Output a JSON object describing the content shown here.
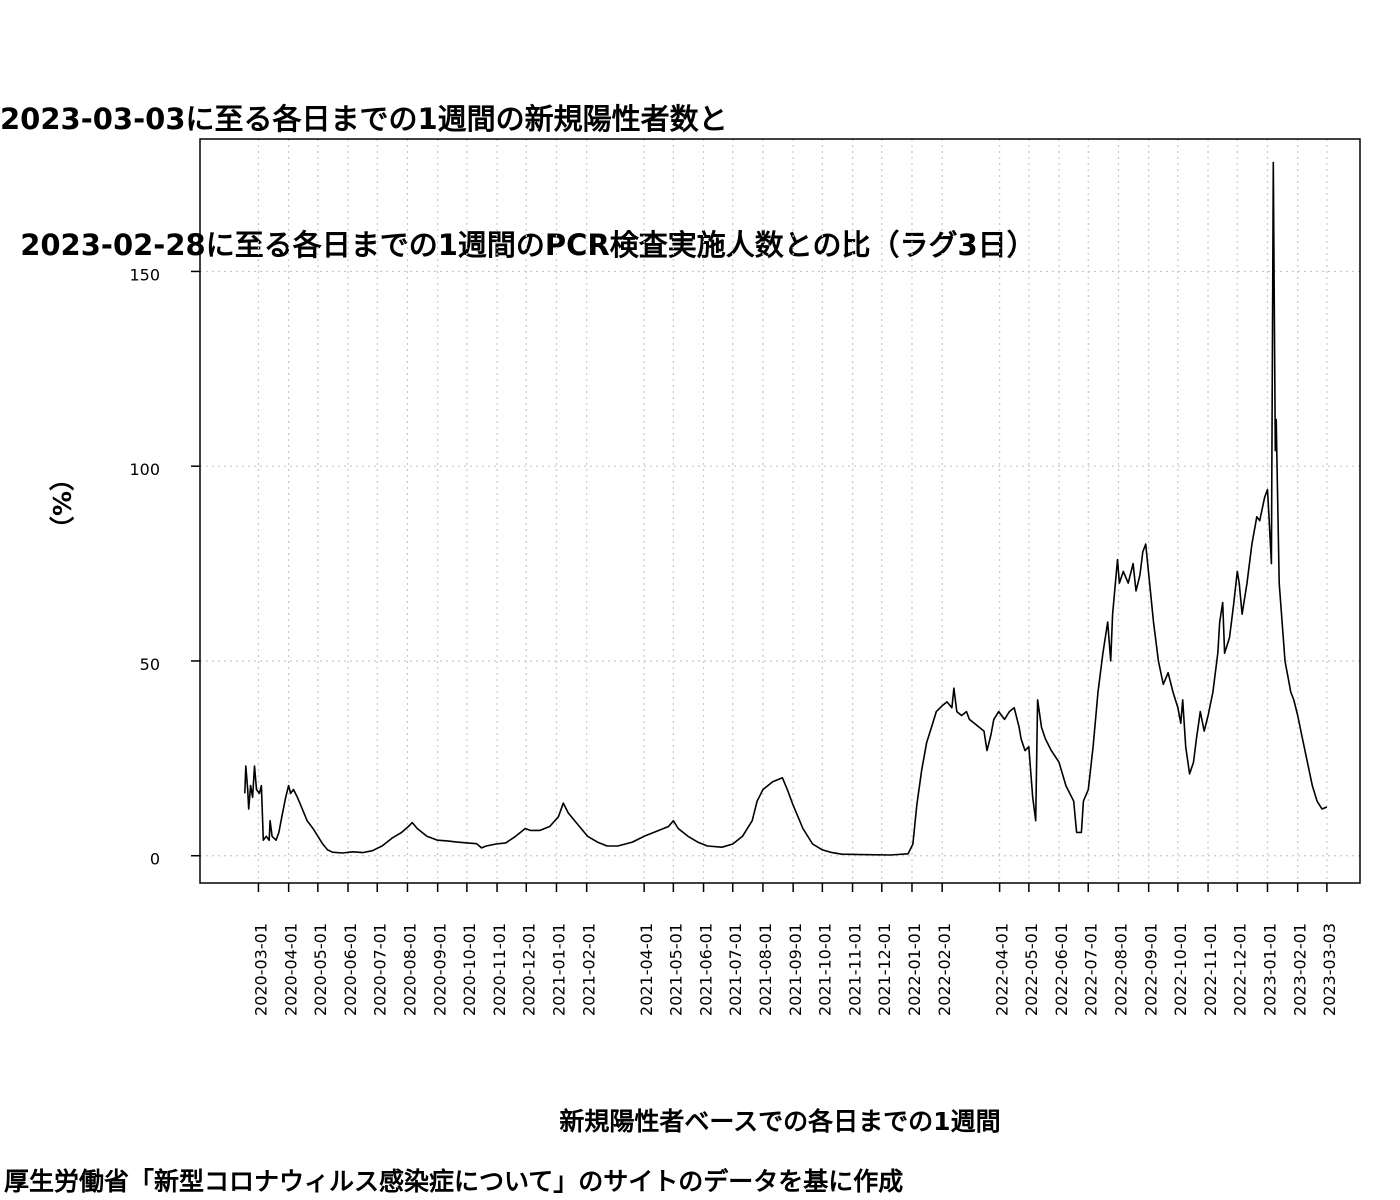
{
  "chart_data": {
    "type": "line",
    "title": [
      "2023-03-03に至る各日までの1週間の新規陽性者数と",
      "  2023-02-28に至る各日までの1週間のPCR検査実施人数との比（ラグ3日）"
    ],
    "xlabel": "新規陽性者ベースでの各日までの1週間",
    "ylabel": "（%）",
    "source": "厚生労働省「新型コロナウィルス感染症について」のサイトのデータを基に作成",
    "ylim": [
      -7,
      184
    ],
    "yticks": [
      0,
      50,
      100,
      150
    ],
    "xlim": [
      "2020-01-01",
      "2023-04-06"
    ],
    "grid": true,
    "x_ticks": [
      "2020-03-01",
      "2020-04-01",
      "2020-05-01",
      "2020-06-01",
      "2020-07-01",
      "2020-08-01",
      "2020-09-01",
      "2020-10-01",
      "2020-11-01",
      "2020-12-01",
      "2021-01-01",
      "2021-02-01",
      "2021-04-01",
      "2021-05-01",
      "2021-06-01",
      "2021-07-01",
      "2021-08-01",
      "2021-09-01",
      "2021-10-01",
      "2021-11-01",
      "2021-12-01",
      "2022-01-01",
      "2022-02-01",
      "2022-04-01",
      "2022-05-01",
      "2022-06-01",
      "2022-07-01",
      "2022-08-01",
      "2022-09-01",
      "2022-10-01",
      "2022-11-01",
      "2022-12-01",
      "2023-01-01",
      "2023-02-01",
      "2023-03-03"
    ],
    "series": [
      {
        "color": "#000000",
        "points": [
          [
            "2020-02-16",
            16
          ],
          [
            "2020-02-17",
            23
          ],
          [
            "2020-02-19",
            17
          ],
          [
            "2020-02-20",
            12
          ],
          [
            "2020-02-22",
            18
          ],
          [
            "2020-02-24",
            15
          ],
          [
            "2020-02-26",
            23
          ],
          [
            "2020-02-28",
            17
          ],
          [
            "2020-03-02",
            16
          ],
          [
            "2020-03-04",
            18
          ],
          [
            "2020-03-06",
            4
          ],
          [
            "2020-03-09",
            5
          ],
          [
            "2020-03-12",
            4
          ],
          [
            "2020-03-13",
            9
          ],
          [
            "2020-03-15",
            5
          ],
          [
            "2020-03-19",
            4
          ],
          [
            "2020-03-22",
            6
          ],
          [
            "2020-03-25",
            10
          ],
          [
            "2020-03-29",
            15
          ],
          [
            "2020-04-01",
            18
          ],
          [
            "2020-04-03",
            16
          ],
          [
            "2020-04-06",
            17
          ],
          [
            "2020-04-10",
            15
          ],
          [
            "2020-04-15",
            12
          ],
          [
            "2020-04-20",
            9
          ],
          [
            "2020-04-26",
            7
          ],
          [
            "2020-05-01",
            5
          ],
          [
            "2020-05-06",
            3
          ],
          [
            "2020-05-11",
            1.5
          ],
          [
            "2020-05-16",
            0.9
          ],
          [
            "2020-05-26",
            0.7
          ],
          [
            "2020-06-06",
            1
          ],
          [
            "2020-06-16",
            0.8
          ],
          [
            "2020-06-26",
            1.3
          ],
          [
            "2020-07-06",
            2.5
          ],
          [
            "2020-07-16",
            4.5
          ],
          [
            "2020-07-26",
            6
          ],
          [
            "2020-08-02",
            7.5
          ],
          [
            "2020-08-06",
            8.5
          ],
          [
            "2020-08-11",
            7
          ],
          [
            "2020-08-21",
            5
          ],
          [
            "2020-09-01",
            4
          ],
          [
            "2020-09-11",
            3.8
          ],
          [
            "2020-09-21",
            3.5
          ],
          [
            "2020-10-01",
            3.3
          ],
          [
            "2020-10-11",
            3.1
          ],
          [
            "2020-10-16",
            2
          ],
          [
            "2020-10-21",
            2.5
          ],
          [
            "2020-10-31",
            3
          ],
          [
            "2020-11-10",
            3.3
          ],
          [
            "2020-11-20",
            5
          ],
          [
            "2020-11-30",
            7
          ],
          [
            "2020-12-05",
            6.5
          ],
          [
            "2020-12-15",
            6.5
          ],
          [
            "2020-12-25",
            7.5
          ],
          [
            "2021-01-03",
            10
          ],
          [
            "2021-01-08",
            13.5
          ],
          [
            "2021-01-13",
            11
          ],
          [
            "2021-01-23",
            8
          ],
          [
            "2021-02-02",
            5
          ],
          [
            "2021-02-12",
            3.5
          ],
          [
            "2021-02-22",
            2.5
          ],
          [
            "2021-03-05",
            2.5
          ],
          [
            "2021-03-20",
            3.5
          ],
          [
            "2021-04-01",
            5
          ],
          [
            "2021-04-11",
            6
          ],
          [
            "2021-04-26",
            7.5
          ],
          [
            "2021-05-01",
            9
          ],
          [
            "2021-05-06",
            7
          ],
          [
            "2021-05-16",
            5
          ],
          [
            "2021-05-26",
            3.5
          ],
          [
            "2021-06-05",
            2.5
          ],
          [
            "2021-06-20",
            2.2
          ],
          [
            "2021-07-01",
            3
          ],
          [
            "2021-07-11",
            5
          ],
          [
            "2021-07-21",
            9
          ],
          [
            "2021-07-26",
            14
          ],
          [
            "2021-08-01",
            17
          ],
          [
            "2021-08-11",
            19
          ],
          [
            "2021-08-21",
            20
          ],
          [
            "2021-08-26",
            17
          ],
          [
            "2021-09-01",
            13
          ],
          [
            "2021-09-11",
            7
          ],
          [
            "2021-09-21",
            3
          ],
          [
            "2021-10-01",
            1.5
          ],
          [
            "2021-10-11",
            0.8
          ],
          [
            "2021-10-21",
            0.4
          ],
          [
            "2021-11-10",
            0.3
          ],
          [
            "2021-12-10",
            0.2
          ],
          [
            "2021-12-28",
            0.5
          ],
          [
            "2022-01-02",
            3
          ],
          [
            "2022-01-06",
            13
          ],
          [
            "2022-01-11",
            22
          ],
          [
            "2022-01-16",
            29
          ],
          [
            "2022-01-21",
            33
          ],
          [
            "2022-01-26",
            37
          ],
          [
            "2022-02-01",
            38.5
          ],
          [
            "2022-02-06",
            39.5
          ],
          [
            "2022-02-11",
            38
          ],
          [
            "2022-02-13",
            43
          ],
          [
            "2022-02-16",
            37
          ],
          [
            "2022-02-21",
            36
          ],
          [
            "2022-02-26",
            37
          ],
          [
            "2022-03-01",
            35
          ],
          [
            "2022-03-06",
            34
          ],
          [
            "2022-03-11",
            33
          ],
          [
            "2022-03-16",
            32
          ],
          [
            "2022-03-19",
            27
          ],
          [
            "2022-03-23",
            31
          ],
          [
            "2022-03-26",
            35
          ],
          [
            "2022-03-31",
            37
          ],
          [
            "2022-04-06",
            35
          ],
          [
            "2022-04-11",
            37
          ],
          [
            "2022-04-16",
            38
          ],
          [
            "2022-04-21",
            33
          ],
          [
            "2022-04-23",
            30
          ],
          [
            "2022-04-27",
            27
          ],
          [
            "2022-05-01",
            28
          ],
          [
            "2022-05-05",
            15
          ],
          [
            "2022-05-08",
            9
          ],
          [
            "2022-05-10",
            40
          ],
          [
            "2022-05-14",
            33
          ],
          [
            "2022-05-18",
            30
          ],
          [
            "2022-05-24",
            27
          ],
          [
            "2022-06-01",
            24
          ],
          [
            "2022-06-08",
            18
          ],
          [
            "2022-06-16",
            14
          ],
          [
            "2022-06-19",
            6
          ],
          [
            "2022-06-24",
            6
          ],
          [
            "2022-06-26",
            14
          ],
          [
            "2022-07-01",
            17
          ],
          [
            "2022-07-06",
            28
          ],
          [
            "2022-07-11",
            42
          ],
          [
            "2022-07-16",
            52
          ],
          [
            "2022-07-21",
            60
          ],
          [
            "2022-07-24",
            50
          ],
          [
            "2022-07-26",
            62
          ],
          [
            "2022-07-31",
            76
          ],
          [
            "2022-08-02",
            70
          ],
          [
            "2022-08-06",
            73
          ],
          [
            "2022-08-11",
            70
          ],
          [
            "2022-08-16",
            75
          ],
          [
            "2022-08-19",
            68
          ],
          [
            "2022-08-23",
            72
          ],
          [
            "2022-08-26",
            78
          ],
          [
            "2022-08-29",
            80
          ],
          [
            "2022-09-02",
            70
          ],
          [
            "2022-09-06",
            60
          ],
          [
            "2022-09-11",
            50
          ],
          [
            "2022-09-16",
            44
          ],
          [
            "2022-09-21",
            47
          ],
          [
            "2022-09-26",
            42
          ],
          [
            "2022-10-01",
            38
          ],
          [
            "2022-10-04",
            34
          ],
          [
            "2022-10-06",
            40
          ],
          [
            "2022-10-09",
            28
          ],
          [
            "2022-10-13",
            21
          ],
          [
            "2022-10-17",
            24
          ],
          [
            "2022-10-20",
            30
          ],
          [
            "2022-10-24",
            37
          ],
          [
            "2022-10-28",
            32
          ],
          [
            "2022-11-01",
            36
          ],
          [
            "2022-11-06",
            42
          ],
          [
            "2022-11-11",
            52
          ],
          [
            "2022-11-13",
            60
          ],
          [
            "2022-11-16",
            65
          ],
          [
            "2022-11-18",
            52
          ],
          [
            "2022-11-23",
            56
          ],
          [
            "2022-11-27",
            64
          ],
          [
            "2022-12-01",
            73
          ],
          [
            "2022-12-03",
            70
          ],
          [
            "2022-12-06",
            62
          ],
          [
            "2022-12-11",
            70
          ],
          [
            "2022-12-16",
            80
          ],
          [
            "2022-12-21",
            87
          ],
          [
            "2022-12-24",
            86
          ],
          [
            "2022-12-29",
            92
          ],
          [
            "2023-01-01",
            94
          ],
          [
            "2023-01-03",
            85
          ],
          [
            "2023-01-05",
            75
          ],
          [
            "2023-01-07",
            178
          ],
          [
            "2023-01-09",
            104
          ],
          [
            "2023-01-10",
            112
          ],
          [
            "2023-01-13",
            70
          ],
          [
            "2023-01-16",
            60
          ],
          [
            "2023-01-19",
            50
          ],
          [
            "2023-01-22",
            46
          ],
          [
            "2023-01-25",
            42
          ],
          [
            "2023-01-28",
            40
          ],
          [
            "2023-02-01",
            36
          ],
          [
            "2023-02-06",
            30
          ],
          [
            "2023-02-11",
            24
          ],
          [
            "2023-02-16",
            18
          ],
          [
            "2023-02-21",
            14
          ],
          [
            "2023-02-26",
            12
          ],
          [
            "2023-03-03",
            12.5
          ]
        ]
      }
    ]
  }
}
